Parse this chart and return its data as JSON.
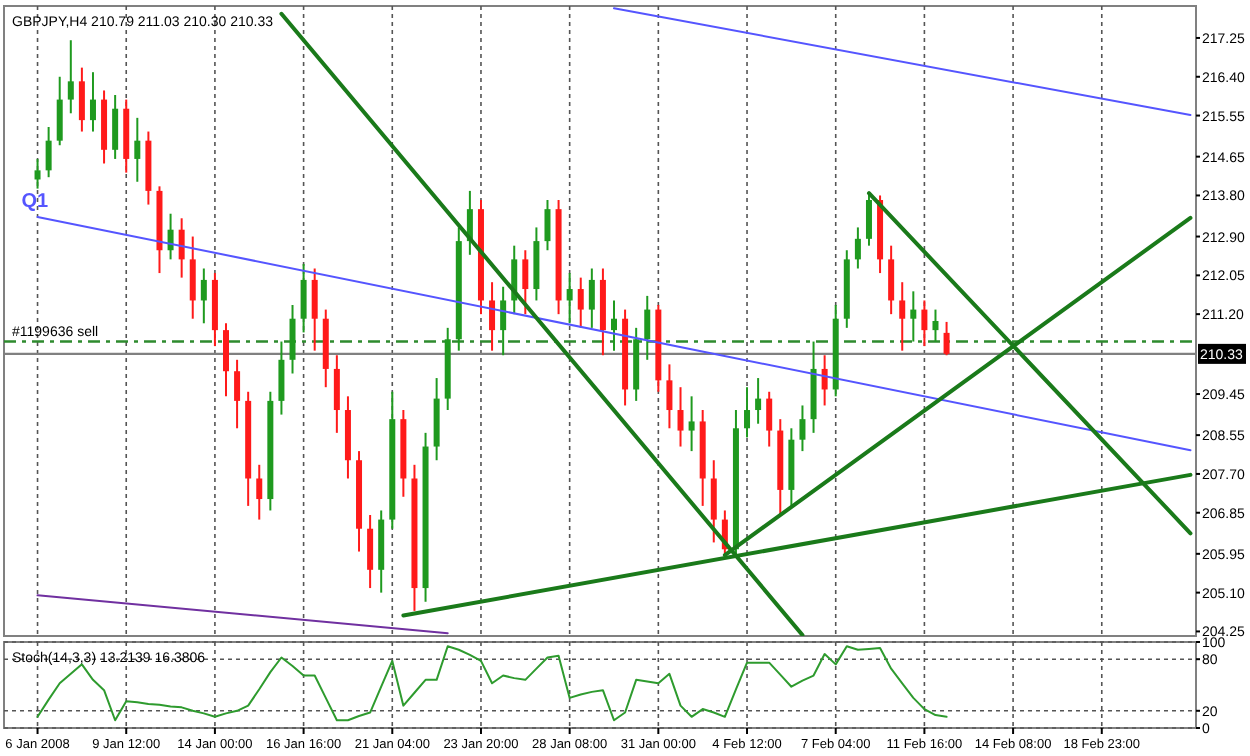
{
  "chart_data": [
    {
      "type": "candlestick",
      "title": "GBPJPY,H4  210.79 211.03 210.30 210.33",
      "categories": [
        null,
        null,
        null,
        null,
        null,
        null,
        null,
        null,
        null,
        null,
        null,
        null,
        null,
        null,
        null,
        null,
        null,
        null,
        null,
        null,
        null,
        null,
        null,
        null,
        null,
        null,
        null,
        null,
        null,
        null,
        null,
        null,
        null,
        null,
        null,
        null,
        null,
        null,
        null,
        null,
        null,
        null,
        null,
        null,
        null,
        null,
        null,
        null,
        null,
        null,
        null,
        null,
        null,
        null,
        null,
        null,
        null,
        null,
        null,
        null,
        null,
        null,
        null,
        null,
        null,
        null,
        null,
        null,
        null,
        null,
        null,
        null,
        null,
        null,
        null,
        null,
        null,
        null,
        null,
        null,
        null,
        null,
        null,
        null,
        null,
        null,
        null,
        null,
        null,
        null,
        null,
        null,
        null,
        null,
        null,
        null,
        null,
        null,
        null,
        null,
        null,
        null,
        null,
        null,
        null
      ],
      "ohlc": [
        [
          214.15,
          214.6,
          213.95,
          214.35
        ],
        [
          214.35,
          215.3,
          214.2,
          215.0
        ],
        [
          215.0,
          216.4,
          214.9,
          215.9
        ],
        [
          215.9,
          217.2,
          215.6,
          216.3
        ],
        [
          216.3,
          216.6,
          215.2,
          215.45
        ],
        [
          215.45,
          216.5,
          215.2,
          215.9
        ],
        [
          215.9,
          216.1,
          214.5,
          214.8
        ],
        [
          214.8,
          216.0,
          214.6,
          215.7
        ],
        [
          215.7,
          215.9,
          214.3,
          214.6
        ],
        [
          214.6,
          215.5,
          214.1,
          215.0
        ],
        [
          215.0,
          215.2,
          213.6,
          213.9
        ],
        [
          213.9,
          214.0,
          212.1,
          212.6
        ],
        [
          212.6,
          213.4,
          212.4,
          213.05
        ],
        [
          213.05,
          213.3,
          212.0,
          212.4
        ],
        [
          212.4,
          212.9,
          211.1,
          211.5
        ],
        [
          211.5,
          212.2,
          211.0,
          211.95
        ],
        [
          211.95,
          212.1,
          210.5,
          210.85
        ],
        [
          210.85,
          211.0,
          209.4,
          209.95
        ],
        [
          209.95,
          210.2,
          208.7,
          209.3
        ],
        [
          209.3,
          209.5,
          207.0,
          207.6
        ],
        [
          207.6,
          207.9,
          206.7,
          207.15
        ],
        [
          207.15,
          209.5,
          206.9,
          209.3
        ],
        [
          209.3,
          210.6,
          209.0,
          210.2
        ],
        [
          210.2,
          211.4,
          209.9,
          211.1
        ],
        [
          211.1,
          212.3,
          210.8,
          211.95
        ],
        [
          211.95,
          212.2,
          210.4,
          211.1
        ],
        [
          211.1,
          211.3,
          209.6,
          210.0
        ],
        [
          210.0,
          210.3,
          208.6,
          209.1
        ],
        [
          209.1,
          209.4,
          207.6,
          208.0
        ],
        [
          208.0,
          208.2,
          206.0,
          206.5
        ],
        [
          206.5,
          206.8,
          205.2,
          205.6
        ],
        [
          205.6,
          206.9,
          205.1,
          206.7
        ],
        [
          206.7,
          209.5,
          206.5,
          208.9
        ],
        [
          208.9,
          209.1,
          207.2,
          207.6
        ],
        [
          207.6,
          207.9,
          204.7,
          205.2
        ],
        [
          205.2,
          208.6,
          204.9,
          208.3
        ],
        [
          208.3,
          209.8,
          208.0,
          209.35
        ],
        [
          209.35,
          210.9,
          209.1,
          210.65
        ],
        [
          210.65,
          213.1,
          210.4,
          212.8
        ],
        [
          212.8,
          213.9,
          212.5,
          213.5
        ],
        [
          213.5,
          213.7,
          211.2,
          211.5
        ],
        [
          211.5,
          211.9,
          210.4,
          210.85
        ],
        [
          210.85,
          211.8,
          210.3,
          211.5
        ],
        [
          211.5,
          212.7,
          211.2,
          212.4
        ],
        [
          212.4,
          212.6,
          211.2,
          211.75
        ],
        [
          211.75,
          213.1,
          211.5,
          212.8
        ],
        [
          212.8,
          213.7,
          212.6,
          213.5
        ],
        [
          213.5,
          213.7,
          211.2,
          211.5
        ],
        [
          211.5,
          212.1,
          211.0,
          211.75
        ],
        [
          211.75,
          212.0,
          210.9,
          211.3
        ],
        [
          211.3,
          212.2,
          210.9,
          211.95
        ],
        [
          211.95,
          212.2,
          210.3,
          210.85
        ],
        [
          210.85,
          211.5,
          210.4,
          211.1
        ],
        [
          211.1,
          211.3,
          209.2,
          209.55
        ],
        [
          209.55,
          210.9,
          209.3,
          210.65
        ],
        [
          210.65,
          211.6,
          210.2,
          211.3
        ],
        [
          211.3,
          211.4,
          209.5,
          209.75
        ],
        [
          209.75,
          210.1,
          208.7,
          209.1
        ],
        [
          209.1,
          209.6,
          208.3,
          208.65
        ],
        [
          208.65,
          209.4,
          208.2,
          208.85
        ],
        [
          208.85,
          209.1,
          207.0,
          207.6
        ],
        [
          207.6,
          208.0,
          206.2,
          206.7
        ],
        [
          206.7,
          206.9,
          205.9,
          206.05
        ],
        [
          206.05,
          209.1,
          205.9,
          208.7
        ],
        [
          208.7,
          209.6,
          208.5,
          209.1
        ],
        [
          209.1,
          209.8,
          208.8,
          209.35
        ],
        [
          209.35,
          209.5,
          208.3,
          208.65
        ],
        [
          208.65,
          208.9,
          206.8,
          207.35
        ],
        [
          207.35,
          208.7,
          207.0,
          208.45
        ],
        [
          208.45,
          209.2,
          208.2,
          208.9
        ],
        [
          208.9,
          210.6,
          208.6,
          210.0
        ],
        [
          210.0,
          210.3,
          209.2,
          209.55
        ],
        [
          209.55,
          211.4,
          209.4,
          211.1
        ],
        [
          211.1,
          212.6,
          210.9,
          212.4
        ],
        [
          212.4,
          213.1,
          212.2,
          212.85
        ],
        [
          212.85,
          213.85,
          212.7,
          213.7
        ],
        [
          213.7,
          213.8,
          212.1,
          212.4
        ],
        [
          212.4,
          212.7,
          211.2,
          211.5
        ],
        [
          211.5,
          211.9,
          210.4,
          211.1
        ],
        [
          211.1,
          211.7,
          210.6,
          211.3
        ],
        [
          211.3,
          211.5,
          210.5,
          210.85
        ],
        [
          210.85,
          211.3,
          210.6,
          211.05
        ],
        [
          210.79,
          211.03,
          210.3,
          210.33
        ],
        null,
        null,
        null,
        null,
        null,
        null,
        null,
        null,
        null,
        null,
        null,
        null,
        null,
        null,
        null,
        null,
        null,
        null,
        null,
        null,
        null,
        null
      ],
      "series": [
        {
          "type": "line",
          "color": "#5555ff",
          "values": [
            null,
            null,
            null,
            null,
            null,
            null,
            null,
            null,
            null,
            null,
            null,
            null,
            null,
            null,
            null,
            null,
            null,
            null,
            null,
            null,
            null,
            null,
            null,
            null,
            null,
            null,
            null,
            null,
            null,
            null,
            null,
            null,
            null,
            null,
            null,
            null,
            null,
            null,
            null,
            null,
            null,
            null,
            null,
            null,
            null,
            null,
            null,
            null,
            null,
            null,
            null,
            null,
            217.9,
            null,
            null,
            null,
            null,
            null,
            null,
            null,
            null,
            null,
            null,
            null,
            null,
            null,
            null,
            null,
            null,
            null,
            null,
            null,
            null,
            null,
            null,
            null,
            null,
            null,
            null,
            null,
            null,
            null,
            null,
            null,
            null,
            null,
            null,
            null,
            null,
            null,
            null,
            null,
            null,
            null,
            null,
            null,
            null,
            null,
            null,
            null,
            null,
            null,
            null,
            null,
            215.56
          ]
        },
        {
          "type": "line",
          "name": "Q1",
          "color": "#5555ff",
          "values": [
            213.33,
            null,
            null,
            null,
            null,
            null,
            null,
            null,
            null,
            null,
            null,
            null,
            null,
            null,
            null,
            null,
            null,
            null,
            null,
            null,
            null,
            null,
            null,
            null,
            null,
            null,
            null,
            null,
            null,
            null,
            null,
            null,
            null,
            null,
            null,
            null,
            null,
            null,
            null,
            null,
            null,
            null,
            null,
            null,
            null,
            null,
            null,
            null,
            null,
            null,
            null,
            null,
            null,
            null,
            null,
            null,
            null,
            null,
            null,
            null,
            null,
            null,
            null,
            null,
            null,
            null,
            null,
            null,
            null,
            null,
            null,
            null,
            null,
            null,
            null,
            null,
            null,
            null,
            null,
            null,
            null,
            null,
            null,
            null,
            null,
            null,
            null,
            null,
            null,
            null,
            null,
            null,
            null,
            null,
            null,
            null,
            null,
            null,
            null,
            null,
            null,
            null,
            null,
            null,
            208.22
          ]
        },
        {
          "type": "line",
          "color": "#7030a0",
          "values": [
            205.04,
            null,
            null,
            null,
            null,
            null,
            null,
            null,
            null,
            null,
            null,
            null,
            null,
            null,
            null,
            null,
            null,
            null,
            null,
            null,
            null,
            null,
            null,
            null,
            null,
            null,
            null,
            null,
            null,
            null,
            null,
            null,
            null,
            null,
            null,
            null,
            null,
            204.21,
            null,
            null,
            null,
            null,
            null,
            null,
            null,
            null,
            null,
            null,
            null,
            null,
            null,
            null,
            null,
            null,
            null,
            null,
            null,
            null,
            null,
            null,
            null,
            null,
            null,
            null,
            null,
            null,
            null,
            null,
            null,
            null,
            null,
            null,
            null,
            null,
            null,
            null,
            null,
            null,
            null,
            null,
            null,
            null,
            null,
            null,
            null,
            null,
            null,
            null,
            null,
            null,
            null,
            null,
            null,
            null,
            null,
            null,
            null,
            null,
            null,
            null,
            null,
            null,
            null,
            null,
            null
          ]
        },
        {
          "type": "line",
          "color": "#1a7a1a",
          "values": [
            null,
            null,
            null,
            null,
            null,
            null,
            null,
            null,
            null,
            null,
            null,
            null,
            null,
            null,
            null,
            null,
            null,
            null,
            null,
            null,
            null,
            null,
            217.78,
            null,
            null,
            null,
            null,
            null,
            null,
            null,
            null,
            null,
            null,
            null,
            null,
            null,
            null,
            null,
            null,
            null,
            null,
            null,
            null,
            null,
            null,
            null,
            null,
            null,
            null,
            null,
            null,
            null,
            null,
            null,
            null,
            null,
            null,
            null,
            null,
            null,
            null,
            null,
            null,
            null,
            null,
            null,
            null,
            null,
            null,
            204.17,
            null,
            null,
            null,
            null,
            null,
            null,
            null,
            null,
            null,
            null,
            null,
            null,
            null,
            null,
            null,
            null,
            null,
            null,
            null,
            null,
            null,
            null,
            null,
            null,
            null,
            null,
            null,
            null,
            null,
            null,
            null,
            null,
            null,
            null,
            null
          ]
        },
        {
          "type": "line",
          "color": "#1a7a1a",
          "values": [
            null,
            null,
            null,
            null,
            null,
            null,
            null,
            null,
            null,
            null,
            null,
            null,
            null,
            null,
            null,
            null,
            null,
            null,
            null,
            null,
            null,
            null,
            null,
            null,
            null,
            null,
            null,
            null,
            null,
            null,
            null,
            null,
            null,
            204.6,
            null,
            null,
            null,
            null,
            null,
            null,
            null,
            null,
            null,
            null,
            null,
            null,
            null,
            null,
            null,
            null,
            null,
            null,
            null,
            null,
            null,
            null,
            null,
            null,
            null,
            null,
            null,
            null,
            null,
            null,
            null,
            null,
            null,
            null,
            null,
            null,
            null,
            null,
            null,
            null,
            null,
            null,
            null,
            null,
            null,
            null,
            null,
            null,
            null,
            null,
            null,
            null,
            null,
            null,
            null,
            null,
            null,
            null,
            null,
            null,
            null,
            null,
            null,
            null,
            null,
            null,
            null,
            null,
            null,
            null,
            207.68
          ]
        },
        {
          "type": "line",
          "color": "#1a7a1a",
          "values": [
            null,
            null,
            null,
            null,
            null,
            null,
            null,
            null,
            null,
            null,
            null,
            null,
            null,
            null,
            null,
            null,
            null,
            null,
            null,
            null,
            null,
            null,
            null,
            null,
            null,
            null,
            null,
            null,
            null,
            null,
            null,
            null,
            null,
            null,
            null,
            null,
            null,
            null,
            null,
            null,
            null,
            null,
            null,
            null,
            null,
            null,
            null,
            null,
            null,
            null,
            null,
            null,
            null,
            null,
            null,
            null,
            null,
            null,
            null,
            null,
            null,
            null,
            205.92,
            null,
            null,
            null,
            null,
            null,
            null,
            null,
            null,
            null,
            null,
            null,
            null,
            null,
            null,
            null,
            null,
            null,
            null,
            null,
            null,
            null,
            null,
            null,
            null,
            null,
            null,
            null,
            null,
            null,
            null,
            null,
            null,
            null,
            null,
            null,
            null,
            null,
            null,
            null,
            null,
            null,
            213.31
          ]
        },
        {
          "type": "line",
          "color": "#1a7a1a",
          "values": [
            null,
            null,
            null,
            null,
            null,
            null,
            null,
            null,
            null,
            null,
            null,
            null,
            null,
            null,
            null,
            null,
            null,
            null,
            null,
            null,
            null,
            null,
            null,
            null,
            null,
            null,
            null,
            null,
            null,
            null,
            null,
            null,
            null,
            null,
            null,
            null,
            null,
            null,
            null,
            null,
            null,
            null,
            null,
            null,
            null,
            null,
            null,
            null,
            null,
            null,
            null,
            null,
            null,
            null,
            null,
            null,
            null,
            null,
            null,
            null,
            null,
            null,
            null,
            null,
            null,
            null,
            null,
            null,
            null,
            null,
            null,
            null,
            null,
            null,
            null,
            213.85,
            null,
            null,
            null,
            null,
            null,
            null,
            null,
            null,
            null,
            null,
            null,
            null,
            null,
            null,
            null,
            null,
            null,
            null,
            null,
            null,
            null,
            null,
            null,
            null,
            null,
            null,
            null,
            null,
            206.4
          ]
        }
      ],
      "ref_lines": [
        {
          "axis": "y",
          "value": 210.6,
          "label": "#1199636 sell",
          "color": "#2e8b2e",
          "line_style": "dashed"
        },
        {
          "axis": "y",
          "value": 210.33,
          "label": "210.33",
          "color": "#808080",
          "line_style": "solid"
        }
      ],
      "ylim": [
        204.15,
        217.95
      ],
      "yticks": [
        217.25,
        {
          "value": 216.4,
          "label": "216.40"
        },
        215.55,
        214.65,
        {
          "value": 213.8,
          "label": "213.80"
        },
        {
          "value": 212.9,
          "label": "212.90"
        },
        212.05,
        {
          "value": 211.2,
          "label": "211.20"
        },
        209.45,
        208.55,
        {
          "value": 207.7,
          "label": "207.70"
        },
        206.85,
        205.95,
        {
          "value": 205.1,
          "label": "205.10"
        },
        204.25
      ],
      "tick_labels": "y",
      "grid": "x"
    },
    {
      "type": "line",
      "title": "Stoch(14,3,3) 13.2139 16.3806",
      "color": "#2e9b2e",
      "categories": [
        "6 Jan 2008",
        null,
        null,
        null,
        null,
        null,
        null,
        null,
        "9 Jan 12:00",
        null,
        null,
        null,
        null,
        null,
        null,
        null,
        "14 Jan 00:00",
        null,
        null,
        null,
        null,
        null,
        null,
        null,
        "16 Jan 16:00",
        null,
        null,
        null,
        null,
        null,
        null,
        null,
        "21 Jan 04:00",
        null,
        null,
        null,
        null,
        null,
        null,
        null,
        "23 Jan 20:00",
        null,
        null,
        null,
        null,
        null,
        null,
        null,
        "28 Jan 08:00",
        null,
        null,
        null,
        null,
        null,
        null,
        null,
        "31 Jan 00:00",
        null,
        null,
        null,
        null,
        null,
        null,
        null,
        "4 Feb 12:00",
        null,
        null,
        null,
        null,
        null,
        null,
        null,
        "7 Feb 04:00",
        null,
        null,
        null,
        null,
        null,
        null,
        null,
        "11 Feb 16:00",
        null,
        null,
        null,
        null,
        null,
        null,
        null,
        "14 Feb 08:00",
        null,
        null,
        null,
        null,
        null,
        null,
        null,
        "18 Feb 23:00",
        null,
        null,
        null,
        null,
        null,
        null,
        null,
        null
      ],
      "values": [
        13,
        33,
        52,
        63,
        74,
        56,
        44,
        9,
        31,
        30,
        28,
        27,
        25,
        24,
        20,
        17,
        13,
        17,
        20,
        26,
        45,
        65,
        82,
        72,
        61,
        61,
        35,
        9,
        9,
        14,
        18,
        48,
        78,
        26,
        41,
        56,
        56,
        95,
        91,
        85,
        78,
        52,
        61,
        58,
        56,
        69,
        82,
        84,
        35,
        39,
        42,
        44,
        9,
        18,
        56,
        54,
        52,
        63,
        26,
        13,
        22,
        18,
        13,
        45,
        76,
        76,
        76,
        62,
        48,
        55,
        61,
        86,
        74,
        95,
        91,
        92,
        93,
        69,
        52,
        35,
        22,
        15,
        13,
        null,
        null,
        null,
        null,
        null,
        null,
        null,
        null,
        null,
        null,
        null,
        null,
        null,
        null,
        null,
        null,
        null,
        null,
        null,
        null,
        null,
        null
      ],
      "ylim": [
        0,
        100
      ],
      "yticks": [
        0,
        20,
        80,
        100
      ],
      "grid": true
    }
  ]
}
